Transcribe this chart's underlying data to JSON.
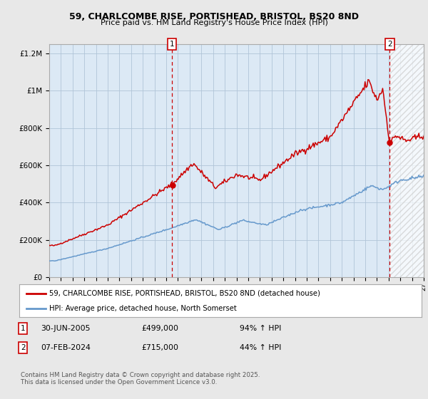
{
  "title": "59, CHARLCOMBE RISE, PORTISHEAD, BRISTOL, BS20 8ND",
  "subtitle": "Price paid vs. HM Land Registry's House Price Index (HPI)",
  "bg_color": "#e8e8e8",
  "plot_bg": "#dce9f5",
  "hatch_bg": "#e0e0e0",
  "grid_color": "#b0c4d8",
  "line1_color": "#cc0000",
  "line2_color": "#6699cc",
  "sale1_date": 2005.5,
  "sale2_date": 2024.1,
  "annotation1": [
    "1",
    "30-JUN-2005",
    "£499,000",
    "94% ↑ HPI"
  ],
  "annotation2": [
    "2",
    "07-FEB-2024",
    "£715,000",
    "44% ↑ HPI"
  ],
  "legend1": "59, CHARLCOMBE RISE, PORTISHEAD, BRISTOL, BS20 8ND (detached house)",
  "legend2": "HPI: Average price, detached house, North Somerset",
  "copyright": "Contains HM Land Registry data © Crown copyright and database right 2025.\nThis data is licensed under the Open Government Licence v3.0.",
  "xmin": 1995,
  "xmax": 2027,
  "ymin": 0,
  "ymax": 1250000,
  "yticks": [
    0,
    200000,
    400000,
    600000,
    800000,
    1000000,
    1200000
  ]
}
